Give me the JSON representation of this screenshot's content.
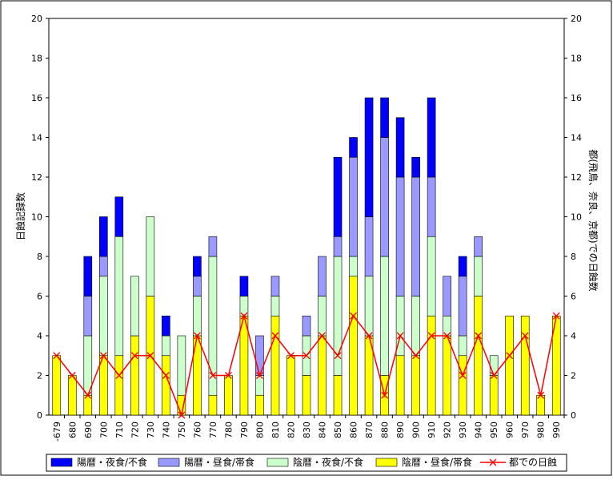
{
  "chart_data": {
    "type": "bar",
    "stacked": true,
    "categories": [
      "-679",
      "680",
      "690",
      "700",
      "710",
      "720",
      "730",
      "740",
      "750",
      "760",
      "770",
      "780",
      "790",
      "800",
      "810",
      "820",
      "830",
      "840",
      "850",
      "860",
      "870",
      "880",
      "890",
      "900",
      "910",
      "920",
      "930",
      "940",
      "950",
      "960",
      "970",
      "980",
      "990"
    ],
    "series": [
      {
        "name": "陰暦・昼食/帯食",
        "color": "#ffff00",
        "values": [
          3,
          2,
          1,
          3,
          3,
          4,
          6,
          3,
          1,
          4,
          1,
          2,
          5,
          1,
          5,
          3,
          2,
          4,
          2,
          7,
          4,
          2,
          3,
          3,
          5,
          4,
          3,
          6,
          2,
          5,
          5,
          1,
          5
        ]
      },
      {
        "name": "陰暦・夜食/不食",
        "color": "#ccffcc",
        "values": [
          0,
          0,
          3,
          4,
          6,
          3,
          4,
          1,
          3,
          2,
          7,
          0,
          1,
          1,
          1,
          0,
          2,
          2,
          6,
          1,
          3,
          6,
          3,
          3,
          4,
          1,
          1,
          2,
          1,
          0,
          0,
          0,
          0
        ]
      },
      {
        "name": "陽暦・昼食/帯食",
        "color": "#9999ff",
        "values": [
          0,
          0,
          2,
          1,
          0,
          0,
          0,
          0,
          0,
          1,
          1,
          0,
          0,
          2,
          1,
          0,
          1,
          2,
          1,
          5,
          3,
          6,
          6,
          6,
          3,
          2,
          3,
          1,
          0,
          0,
          0,
          0,
          0
        ]
      },
      {
        "name": "陽暦・夜食/不食",
        "color": "#0000ff",
        "values": [
          0,
          0,
          2,
          2,
          2,
          0,
          0,
          1,
          0,
          1,
          0,
          0,
          1,
          0,
          0,
          0,
          0,
          0,
          4,
          1,
          6,
          2,
          3,
          1,
          4,
          0,
          1,
          0,
          0,
          0,
          0,
          0,
          0
        ]
      }
    ],
    "line": {
      "name": "都での日蝕",
      "color": "#ff0000",
      "values": [
        3,
        2,
        1,
        3,
        2,
        3,
        3,
        2,
        0,
        4,
        2,
        2,
        5,
        2,
        4,
        3,
        3,
        4,
        3,
        5,
        4,
        1,
        4,
        3,
        4,
        4,
        2,
        4,
        2,
        3,
        4,
        1,
        5
      ]
    },
    "ylabel": "日蝕記録数",
    "y2label": "都(飛鳥、奈良、京都)での日蝕数",
    "ylim": [
      0,
      20
    ],
    "y2lim": [
      0,
      20
    ],
    "yticks": [
      "0",
      "2",
      "4",
      "6",
      "8",
      "10",
      "12",
      "14",
      "16",
      "18",
      "20"
    ],
    "legend_position": "bottom",
    "grid": false
  }
}
